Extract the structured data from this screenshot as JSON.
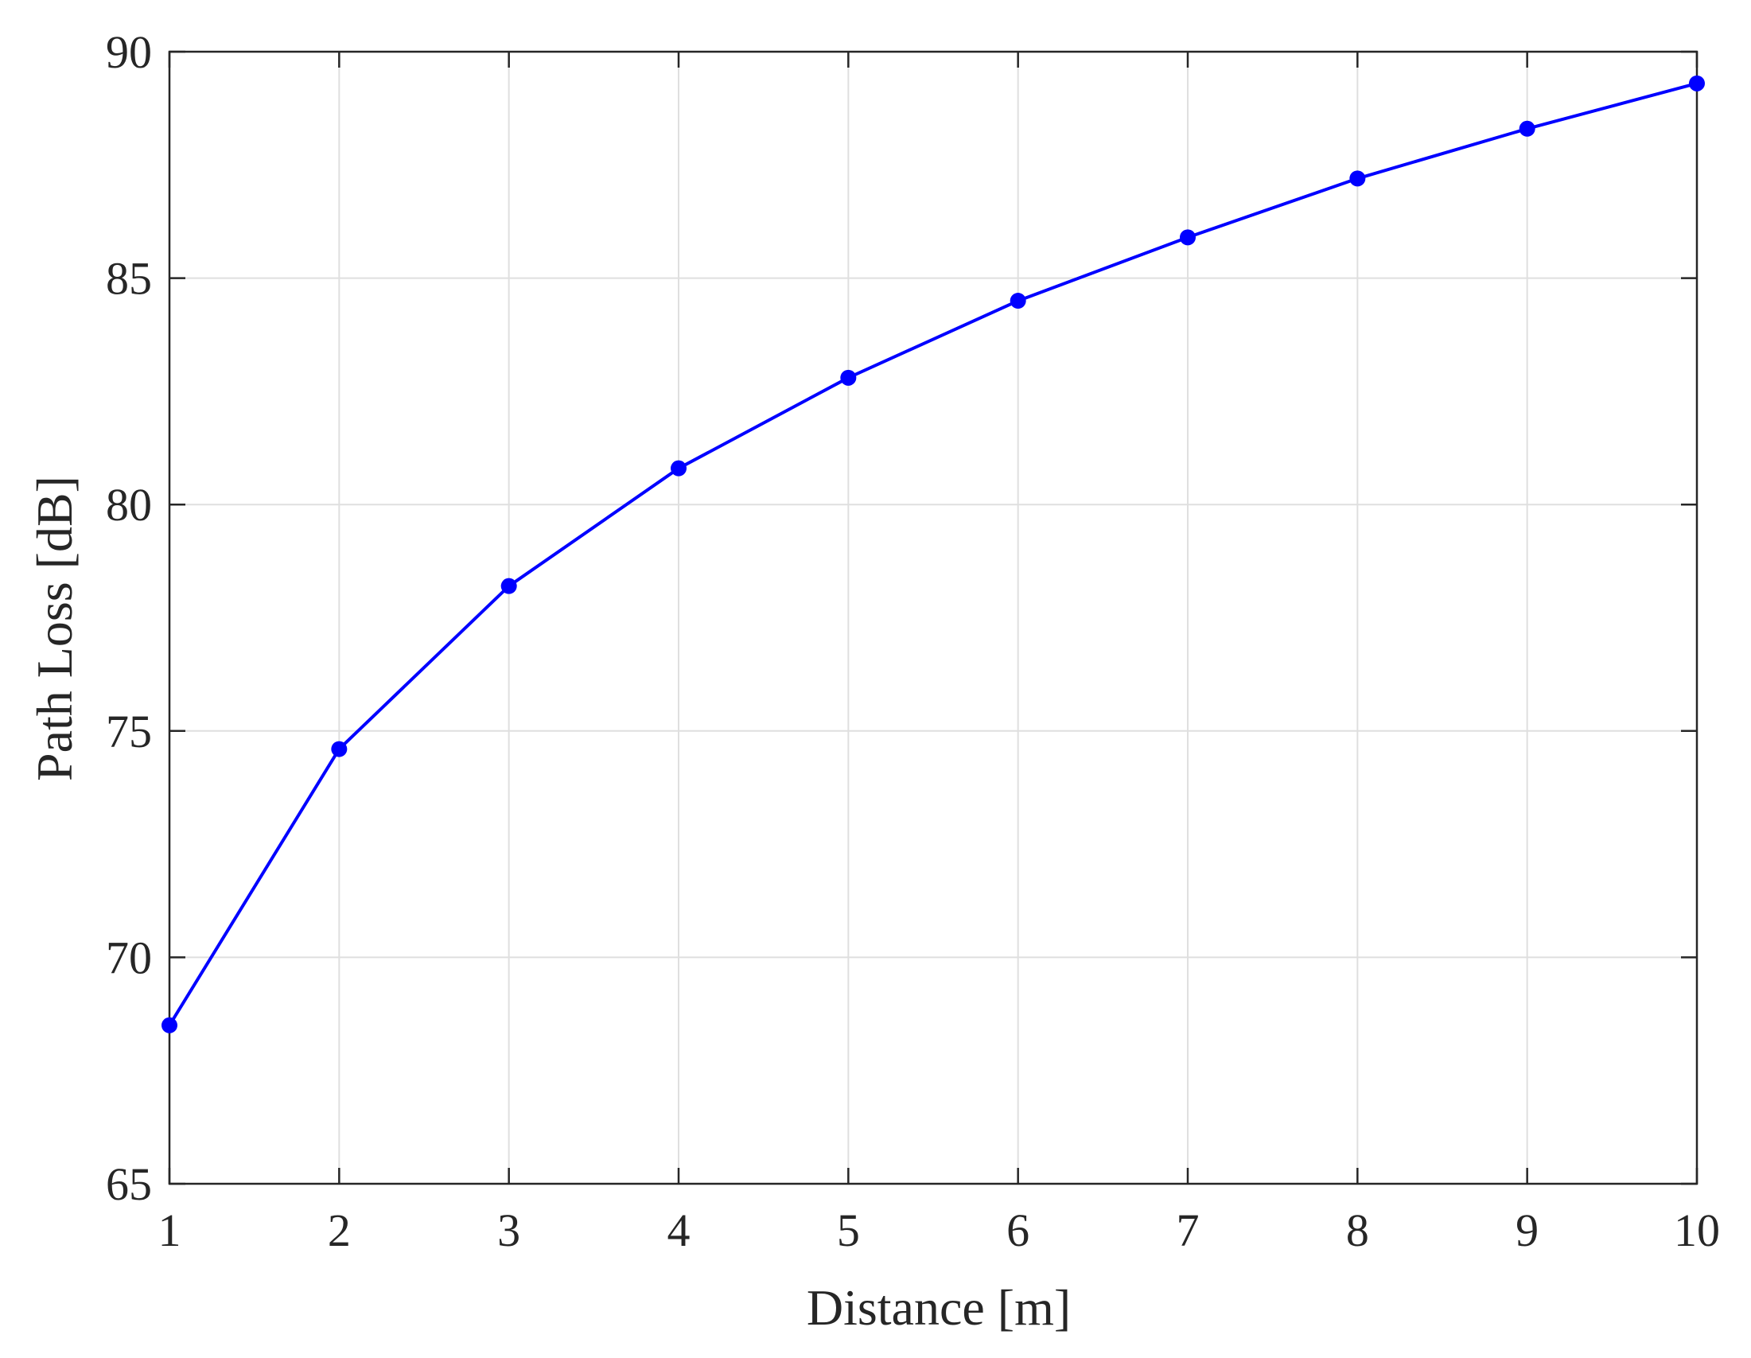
{
  "chart_data": {
    "type": "line",
    "title": "",
    "xlabel": "Distance [m]",
    "ylabel": "Path Loss [dB]",
    "xlim": [
      1,
      10
    ],
    "ylim": [
      65,
      90
    ],
    "xticks": [
      1,
      2,
      3,
      4,
      5,
      6,
      7,
      8,
      9,
      10
    ],
    "yticks": [
      65,
      70,
      75,
      80,
      85,
      90
    ],
    "grid": true,
    "legend": "none",
    "series": [
      {
        "x": [
          1,
          2,
          3,
          4,
          5,
          6,
          7,
          8,
          9,
          10
        ],
        "y": [
          68.5,
          74.6,
          78.2,
          80.8,
          82.8,
          84.5,
          85.9,
          87.2,
          88.3,
          89.3
        ],
        "color": "#0000ff",
        "marker": "circle"
      }
    ]
  },
  "colors": {
    "grid": "#dfdfdf",
    "axis": "#262626",
    "background": "#ffffff"
  }
}
